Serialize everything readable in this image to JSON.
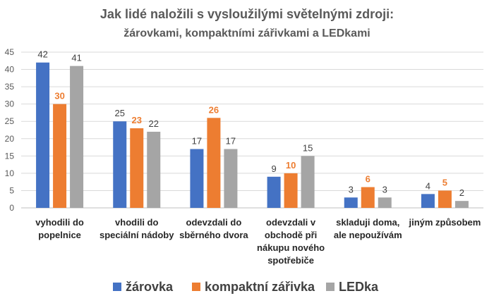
{
  "chart_data": {
    "type": "bar",
    "title": "Jak lidé naložili s vysloužilými světelnými zdroji:",
    "subtitle": "žárovkami, kompaktními zářivkami a LEDkami",
    "categories": [
      [
        "vyhodili do",
        "popelnice"
      ],
      [
        "vhodili do",
        "speciální nádoby"
      ],
      [
        "odevzdali do",
        "sběrného dvora"
      ],
      [
        "odevzdali v",
        "obchodě při",
        "nákupu nového",
        "spotřebiče"
      ],
      [
        "skladuji doma,",
        "ale nepoužívám"
      ],
      [
        "jiným způsobem"
      ]
    ],
    "series": [
      {
        "name": "žárovka",
        "color": "#4472C4",
        "label_color": "#404040",
        "label_bold": false,
        "values": [
          42,
          25,
          17,
          9,
          3,
          4
        ]
      },
      {
        "name": "kompaktní zářivka",
        "color": "#ED7D31",
        "label_color": "#ED7D31",
        "label_bold": true,
        "values": [
          30,
          23,
          26,
          10,
          6,
          5
        ]
      },
      {
        "name": "LEDka",
        "color": "#A5A5A5",
        "label_color": "#404040",
        "label_bold": false,
        "values": [
          41,
          22,
          17,
          15,
          3,
          2
        ]
      }
    ],
    "ylim": [
      0,
      45
    ],
    "yticks": [
      0,
      5,
      10,
      15,
      20,
      25,
      30,
      35,
      40,
      45
    ],
    "grid": true,
    "legend_position": "bottom",
    "xlabel": "",
    "ylabel": ""
  }
}
